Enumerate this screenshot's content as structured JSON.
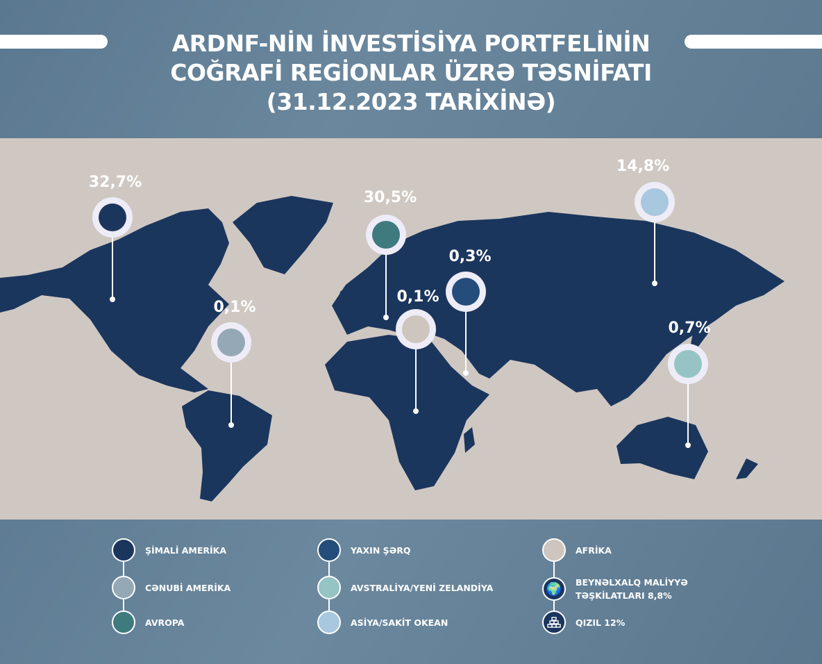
{
  "header": {
    "title_lines": [
      "ARDNF-NİN İNVESTİSİYA PORTFELİNİN",
      "COĞRAFİ REGİONLAR ÜZRƏ TƏSNİFATI",
      "(31.12.2023 TARİXİNƏ)"
    ]
  },
  "map": {
    "land_color": "#1b365d",
    "background_color": "#cfc8c2",
    "markers": [
      {
        "region": "Şimali Amerika",
        "value": "32,7%",
        "color": "#1b365d"
      },
      {
        "region": "Cənubi Amerika",
        "value": "0,1%",
        "color": "#94a9b5"
      },
      {
        "region": "Avropa",
        "value": "30,5%",
        "color": "#3f7a7e"
      },
      {
        "region": "Afrika",
        "value": "0,1%",
        "color": "#cdc5be"
      },
      {
        "region": "Yaxın Şərq",
        "value": "0,3%",
        "color": "#244d7c"
      },
      {
        "region": "Asiya/Sakit Okean",
        "value": "14,8%",
        "color": "#a7c8de"
      },
      {
        "region": "Avstraliya/Yeni Zelandiya",
        "value": "0,7%",
        "color": "#96c3c4"
      }
    ]
  },
  "legend": {
    "items": [
      {
        "label": "ŞİMALİ AMERİKA",
        "color": "#1b365d"
      },
      {
        "label": "CƏNUBİ AMERİKA",
        "color": "#94a9b5"
      },
      {
        "label": "AVROPA",
        "color": "#3f7a7e"
      },
      {
        "label": "YAXIN ŞƏRQ",
        "color": "#244d7c"
      },
      {
        "label": "AVSTRALİYA/YENİ ZELANDİYA",
        "color": "#96c3c4"
      },
      {
        "label": "ASİYA/SAKİT OKEAN",
        "color": "#a7c8de"
      },
      {
        "label": "AFRİKA",
        "color": "#cdc5be"
      },
      {
        "label_lines": [
          "BEYNƏLXALQ MALİYYƏ",
          "TƏŞKİLATLARI 8,8%"
        ],
        "icon": "globe-icon",
        "color": "#1b365d"
      },
      {
        "label": "QIZIL 12%",
        "icon": "gold-bars-icon",
        "color": "#1b365d"
      }
    ]
  }
}
